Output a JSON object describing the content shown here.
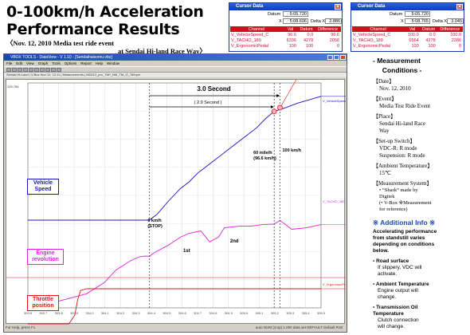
{
  "title": {
    "line1": "0-100km/h Acceleration",
    "line2": "Performance Results",
    "sub1": "〈Nov. 12, 2010   Media test ride event",
    "sub2": "at Sendai Hi-land Race Way〉"
  },
  "cursor_popups": [
    {
      "title": "Cursor Data",
      "datum_label": "Datum",
      "datum": "5:05.720",
      "x_label": "X",
      "x": "5:08.606",
      "dx_label": "Delta X",
      "dx": "2.886",
      "headers": [
        "Channel",
        "Val",
        "Datum",
        "Difference"
      ],
      "rows": [
        [
          "V_VehicleSpeed_C",
          "96.6",
          "0.0",
          "96.6"
        ],
        [
          "V_TACHO_180",
          "6336",
          "4278",
          "2058"
        ],
        [
          "V_ErgonomicPedal",
          "100",
          "100",
          "0"
        ]
      ]
    },
    {
      "title": "Cursor Data",
      "datum_label": "Datum",
      "datum": "5:05.720",
      "x_label": "X",
      "x": "5:08.765",
      "dx_label": "Delta X",
      "dx": "3.045",
      "headers": [
        "Channel",
        "Val",
        "Datum",
        "Difference"
      ],
      "rows": [
        [
          "V_VehicleSpeed_C",
          "100.0",
          "0.0",
          "100.0"
        ],
        [
          "V_TACHO_180",
          "6564",
          "4278",
          "2286"
        ],
        [
          "V_ErgonomicPedal",
          "100",
          "100",
          "0"
        ]
      ]
    }
  ],
  "window": {
    "title": "VBOX TOOLS - DataView - V 1.10 - [Sendaihaisomu.vbo]",
    "menu": [
      "File",
      "Edit",
      "View",
      "Graph",
      "Tools",
      "Options",
      "Report",
      "Help",
      "Window"
    ],
    "tabbar": "Sendai Hi-Land  |  V-Box Nov 12, 12:11  |  Measurements  |  N05/12_pro_TAP_NM_TM_G_780rpm",
    "status_left": "For Help, press F1",
    "status_right": "auto  NUM  (crop) 1.000  data set  DEFAULT  Default R18"
  },
  "chart_data": {
    "type": "line",
    "x_ticks": [
      "303.6",
      "303.7",
      "303.8",
      "303.9",
      "304.0",
      "304.1",
      "304.2",
      "304.3",
      "304.4",
      "304.5",
      "304.6",
      "304.7",
      "304.8",
      "304.9",
      "305.0",
      "305.1",
      "305.2",
      "305.3",
      "305.4",
      "305.5"
    ],
    "y_top_label": "109.765",
    "series": [
      {
        "name": "V_VehicleSpeed_C",
        "label": "Vehicle Speed",
        "color": "#1414c8",
        "x": [
          0,
          0.06,
          0.12,
          0.18,
          0.24,
          0.3,
          0.35,
          0.38,
          0.4,
          0.414,
          0.44,
          0.48,
          0.52,
          0.55,
          0.58,
          0.62,
          0.66,
          0.7,
          0.74,
          0.78,
          0.81,
          0.84,
          0.88,
          0.92,
          0.96,
          1.0
        ],
        "y": [
          0,
          0,
          0,
          0,
          0,
          0,
          0,
          0,
          0,
          0,
          5,
          17,
          28,
          34,
          42,
          50,
          58,
          66,
          74,
          82,
          90,
          96.6,
          100,
          104,
          107,
          110
        ]
      },
      {
        "name": "V_TACHO_180",
        "label": "Engine revolution",
        "color": "#e020e0",
        "x": [
          0,
          0.1,
          0.2,
          0.26,
          0.3,
          0.35,
          0.38,
          0.4,
          0.414,
          0.43,
          0.48,
          0.52,
          0.55,
          0.59,
          0.62,
          0.65,
          0.67,
          0.72,
          0.76,
          0.8,
          0.84,
          0.86,
          0.9,
          0.95,
          1.0
        ],
        "y": [
          1200,
          1400,
          1900,
          2600,
          3400,
          4000,
          4250,
          4300,
          4278,
          4500,
          5000,
          5500,
          5750,
          5900,
          5200,
          5500,
          6100,
          6200,
          6200,
          6300,
          6336,
          6564,
          6000,
          6100,
          6300
        ]
      },
      {
        "name": "V_ErgonomicPedal",
        "label": "Throttle position",
        "color": "#e01414",
        "x": [
          0,
          0.1,
          0.14,
          0.16,
          0.17,
          0.18,
          0.2,
          0.4,
          0.6,
          0.8,
          1.0
        ],
        "y": [
          0,
          0,
          0,
          25,
          70,
          95,
          100,
          100,
          100,
          100,
          100
        ]
      }
    ],
    "annotations": {
      "three_sec": "3.0 Second",
      "two_nine_sec": "( 2.9 Second )",
      "zero": "0 km/h\n(STOP)",
      "sixty_mph": "60 mile/h\n(96.6 km/h)",
      "hundred": "100 km/h",
      "first_gear": "1st",
      "second_gear": "2nd"
    },
    "channel_tags": {
      "speed": "V_VehicleSpeed_C",
      "rev": "V_TACHO_180",
      "pedal": "V_ErgonomicPedal"
    }
  },
  "box_labels": {
    "vehicle_speed": "Vehicle\nSpeed",
    "engine_rev": "Engine\nrevolution",
    "throttle": "Throttle\nposition"
  },
  "sidebar": {
    "heading": "- Measurement\n     Conditions -",
    "date_label": "【Date】",
    "date": "Nov. 12, 2010",
    "event_label": "【Event】",
    "event": "Media Test Ride Event",
    "place_label": "【Place】",
    "place": "Sendai Hi-land Race\nWay",
    "setup_label": "【Set-up Switch】",
    "setup": "VDC-R: R mode\nSuspension: R mode",
    "temp_label": "【Ambient Temperature】",
    "temp": "15℃",
    "system_label": "【Measurement System】",
    "system": "• “Shark” made by\n  Digitek\n(• V-Box ※Measurement\n  for reference)",
    "additional_heading": "※ Additional Info ※",
    "additional_intro": "Accelerating performance\nfrom standstill varies\ndepending on conditions\nbelow.",
    "bullets": [
      {
        "head": "Road surface",
        "body": "If slippery, VDC will\nactivate."
      },
      {
        "head": "Ambient Temperature",
        "body": "Engine output will\nchange."
      },
      {
        "head": "Transmission Oil\nTemperature",
        "body": "Clutch connection\nwill change."
      }
    ]
  }
}
